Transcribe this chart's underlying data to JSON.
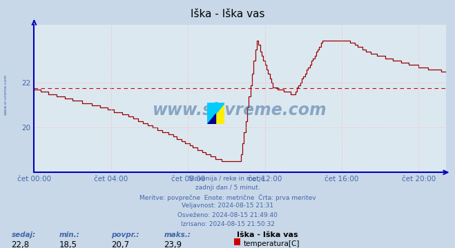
{
  "title": "Iška - Iška vas",
  "bg_color": "#c8d8e8",
  "plot_bg_color": "#dce8f0",
  "line_color": "#990000",
  "grid_color": "#ffaaaa",
  "avg_line_color": "#cc0000",
  "avg_line_y": 21.75,
  "ylim": [
    18.0,
    24.6
  ],
  "yticks": [
    20,
    22
  ],
  "tick_color": "#4466aa",
  "title_color": "#000000",
  "watermark_text": "www.si-vreme.com",
  "watermark_color": "#336699",
  "info_lines": [
    "Slovenija / reke in morje.",
    "zadnji dan / 5 minut.",
    "Meritve: povprečne  Enote: metrične  Črta: prva meritev",
    "Veljavnost: 2024-08-15 21:31",
    "Osveženo: 2024-08-15 21:49:40",
    "Izrisano: 2024-08-15 21:50:32"
  ],
  "bottom_labels": [
    "sedaj:",
    "min.:",
    "povpr.:",
    "maks.:"
  ],
  "bottom_values": [
    "22,8",
    "18,5",
    "20,7",
    "23,9"
  ],
  "legend_station": "Iška - Iška vas",
  "legend_label": "temperatura[C]",
  "legend_color": "#cc0000",
  "xlabel_ticks": [
    "čet 00:00",
    "čet 04:00",
    "čet 08:00",
    "čet 12:00",
    "čet 16:00",
    "čet 20:00"
  ],
  "xlabel_tick_positions": [
    0,
    48,
    96,
    144,
    192,
    240
  ],
  "total_points": 258,
  "sidebar_text": "www.si-vreme.com",
  "sidebar_color": "#4466aa",
  "spine_color": "#0000bb",
  "axis_color": "#4466aa"
}
